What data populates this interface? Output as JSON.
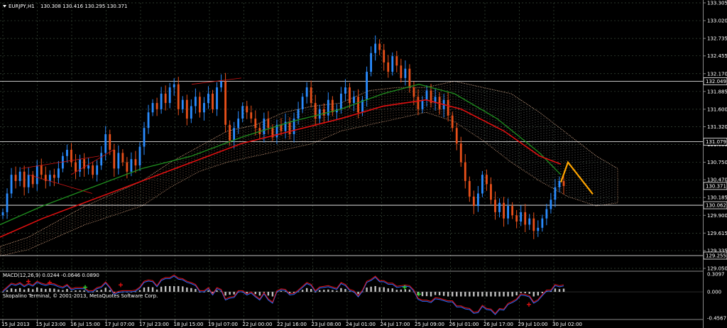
{
  "symbol_info": {
    "title": "EURJPY,H1",
    "ohlc": "130.308 130.416 130.295 130.371"
  },
  "copyright": "Skopalino Terminal, © 2001-2013, MetaQuotes Software Corp.",
  "colors": {
    "background": "#000000",
    "grid": "#3a4a3a",
    "bull": "#2a8cff",
    "bear": "#e8501a",
    "ma_fast": "#1f8f1f",
    "ma_slow": "#e01010",
    "cloud": "#e8b08a",
    "cloud_alt": "#c8c8c8",
    "hline": "#ffffff",
    "forecast": "#ffa500",
    "macd_hist": "#c0c0c0",
    "macd_line": "#2a6cff",
    "signal_line": "#e01010"
  },
  "chart_data": [
    {
      "type": "candlestick",
      "title": "EURJPY,H1",
      "ylim": [
        129.05,
        133.305
      ],
      "y_ticks": [
        "133.305",
        "133.020",
        "132.735",
        "132.455",
        "132.170",
        "131.885",
        "131.600",
        "131.320",
        "131.035",
        "130.750",
        "130.470",
        "130.185",
        "129.900",
        "129.615",
        "129.335",
        "129.050"
      ],
      "price_labels": [
        "132.049",
        "131.079",
        "130.371",
        "130.062",
        "129.255"
      ],
      "horizontal_lines": [
        132.049,
        131.079,
        130.062,
        129.255
      ],
      "x_labels": [
        "15 Jul 2013",
        "15 Jul 23:00",
        "16 Jul 15:00",
        "17 Jul 07:00",
        "17 Jul 23:00",
        "18 Jul 15:00",
        "19 Jul 07:00",
        "22 Jul 00:00",
        "22 Jul 16:00",
        "23 Jul 08:00",
        "24 Jul 01:00",
        "24 Jul 17:00",
        "25 Jul 09:00",
        "26 Jul 01:00",
        "26 Jul 17:00",
        "29 Jul 10:00",
        "30 Jul 02:00"
      ],
      "close_path": [
        129.95,
        130.25,
        130.55,
        130.45,
        130.6,
        130.35,
        130.55,
        130.4,
        130.7,
        130.55,
        130.45,
        130.55,
        130.5,
        130.65,
        130.85,
        130.95,
        130.75,
        130.6,
        130.8,
        130.65,
        130.7,
        130.55,
        130.7,
        130.9,
        131.2,
        130.95,
        130.65,
        130.9,
        130.75,
        130.6,
        130.8,
        130.7,
        131.0,
        131.3,
        131.55,
        131.7,
        131.6,
        131.85,
        131.7,
        131.95,
        132.0,
        131.6,
        131.75,
        131.45,
        131.65,
        131.8,
        131.55,
        131.7,
        131.85,
        131.6,
        131.95,
        132.05,
        131.35,
        131.1,
        131.3,
        131.45,
        131.65,
        131.55,
        131.45,
        131.3,
        131.2,
        131.45,
        131.3,
        131.15,
        131.35,
        131.25,
        131.4,
        131.2,
        131.45,
        131.6,
        131.8,
        131.95,
        131.7,
        131.45,
        131.6,
        131.5,
        131.75,
        131.55,
        131.6,
        131.85,
        131.95,
        131.7,
        131.8,
        131.55,
        131.75,
        132.2,
        132.5,
        132.65,
        132.55,
        132.35,
        132.2,
        132.45,
        132.3,
        132.1,
        132.25,
        131.95,
        131.8,
        131.6,
        131.75,
        131.9,
        131.7,
        131.8,
        131.6,
        131.75,
        131.5,
        131.3,
        131.05,
        130.75,
        130.45,
        130.2,
        130.05,
        130.25,
        130.55,
        130.4,
        130.15,
        129.95,
        130.1,
        129.85,
        130.05,
        129.9,
        129.8,
        129.95,
        129.75,
        129.85,
        129.65,
        129.7,
        129.85,
        130.0,
        130.15,
        130.35,
        130.45,
        130.37
      ],
      "ma_fast": [
        [
          0,
          129.75
        ],
        [
          60,
          130.05
        ],
        [
          130,
          130.35
        ],
        [
          200,
          130.65
        ],
        [
          270,
          130.85
        ],
        [
          340,
          131.15
        ],
        [
          410,
          131.4
        ],
        [
          480,
          131.6
        ],
        [
          540,
          131.85
        ],
        [
          590,
          132.0
        ],
        [
          640,
          131.85
        ],
        [
          700,
          131.45
        ],
        [
          760,
          130.9
        ],
        [
          790,
          130.55
        ]
      ],
      "ma_slow": [
        [
          0,
          129.55
        ],
        [
          60,
          129.85
        ],
        [
          130,
          130.15
        ],
        [
          200,
          130.45
        ],
        [
          270,
          130.75
        ],
        [
          340,
          131.05
        ],
        [
          410,
          131.25
        ],
        [
          480,
          131.45
        ],
        [
          540,
          131.65
        ],
        [
          600,
          131.75
        ],
        [
          650,
          131.6
        ],
        [
          710,
          131.25
        ],
        [
          760,
          130.85
        ],
        [
          790,
          130.72
        ]
      ],
      "forecast": [
        [
          790,
          130.43
        ],
        [
          800,
          130.75
        ],
        [
          835,
          130.24
        ]
      ]
    },
    {
      "type": "histogram",
      "title": "MACD(12,26,9) 0.0244 -0.0646 0.0890",
      "ylim": [
        -0.4567,
        0.3097
      ],
      "y_ticks": [
        "0.3097",
        "0.000",
        "-0.4567"
      ]
    }
  ]
}
